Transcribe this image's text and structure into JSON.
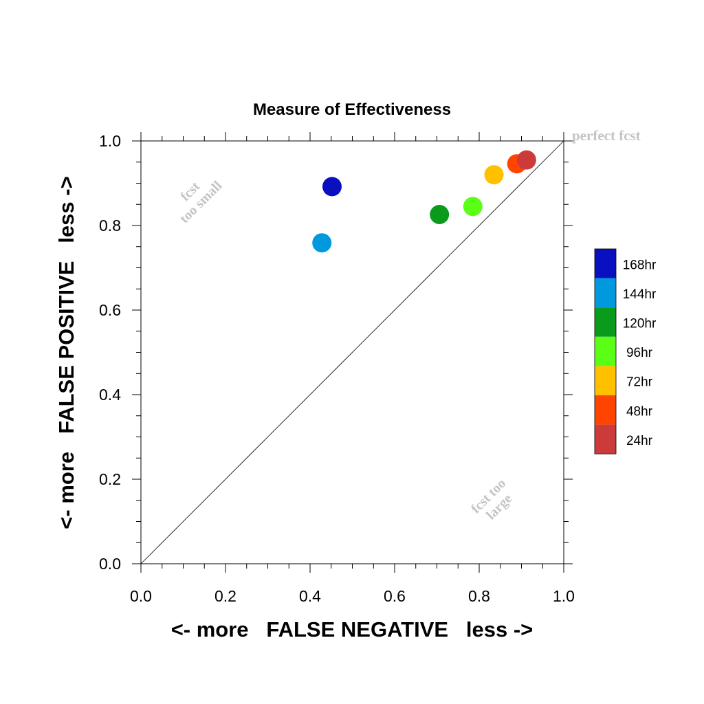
{
  "chart_data": {
    "type": "scatter",
    "title": "Measure of Effectiveness",
    "xlabel": "<- more   FALSE NEGATIVE   less ->",
    "ylabel": "<- more   FALSE POSITIVE   less ->",
    "xlim": [
      0.0,
      1.0
    ],
    "ylim": [
      0.0,
      1.0
    ],
    "x_ticks": [
      "0.0",
      "0.2",
      "0.4",
      "0.6",
      "0.8",
      "1.0"
    ],
    "y_ticks": [
      "0.0",
      "0.2",
      "0.4",
      "0.6",
      "0.8",
      "1.0"
    ],
    "grid": false,
    "diagonal_reference_line": true,
    "legend_position": "right",
    "annotations": {
      "perfect": "perfect fcst",
      "too_small": [
        "fcst",
        "too small"
      ],
      "too_large": [
        "fcst too",
        "large"
      ]
    },
    "series": [
      {
        "name": "168hr",
        "color": "#0a10c0",
        "x": 0.452,
        "y": 0.892
      },
      {
        "name": "144hr",
        "color": "#0099dd",
        "x": 0.428,
        "y": 0.759
      },
      {
        "name": "120hr",
        "color": "#0a9a1c",
        "x": 0.706,
        "y": 0.826
      },
      {
        "name": "96hr",
        "color": "#5bff16",
        "x": 0.785,
        "y": 0.845
      },
      {
        "name": "72hr",
        "color": "#ffc000",
        "x": 0.835,
        "y": 0.92
      },
      {
        "name": "48hr",
        "color": "#ff4400",
        "x": 0.889,
        "y": 0.946
      },
      {
        "name": "24hr",
        "color": "#cc3a3a",
        "x": 0.912,
        "y": 0.955
      }
    ]
  }
}
